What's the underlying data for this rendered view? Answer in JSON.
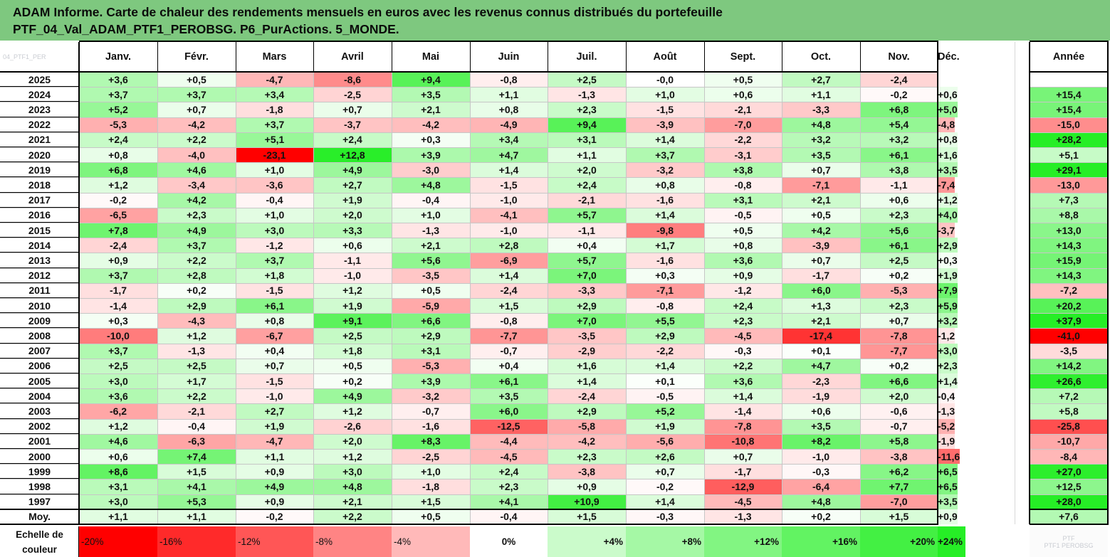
{
  "title": {
    "line1": "ADAM Informe. Carte de chaleur des rendements mensuels en euros avec les revenus connus distribués du portefeuille",
    "line2": "PTF_04_Val_ADAM_PTF1_PEROBSG. P6_PurActions. 5_MONDE."
  },
  "corner_watermark": "04_PTF1_PER",
  "annual_header": "Année",
  "legend_title_line1": "Echelle de",
  "legend_title_line2": "couleur",
  "legend_watermark_line1": "PTF",
  "legend_watermark_line2": "PTF1 PEROBSG",
  "colors": {
    "title_bg": "#7ec87f",
    "negative_max": "#ff0000",
    "positive_max": "#22ee22",
    "neutral": "#ffffff"
  },
  "chart_data": {
    "type": "heatmap",
    "title": "Carte de chaleur des rendements mensuels en euros",
    "months": [
      "Janv.",
      "Févr.",
      "Mars",
      "Avril",
      "Mai",
      "Juin",
      "Juil.",
      "Août",
      "Sept.",
      "Oct.",
      "Nov.",
      "Déc."
    ],
    "unit": "%",
    "rows": [
      {
        "year": "2025",
        "values": [
          "+3,6",
          "+0,5",
          "-4,7",
          "-8,6",
          "+9,4",
          "-0,8",
          "+2,5",
          "-0,0",
          "+0,5",
          "+2,7",
          "-2,4",
          ""
        ],
        "annual": ""
      },
      {
        "year": "2024",
        "values": [
          "+3,7",
          "+3,7",
          "+3,4",
          "-2,5",
          "+3,5",
          "+1,1",
          "-1,3",
          "+1,0",
          "+0,6",
          "+1,1",
          "-0,2",
          "+0,6"
        ],
        "annual": "+15,4"
      },
      {
        "year": "2023",
        "values": [
          "+5,2",
          "+0,7",
          "-1,8",
          "+0,7",
          "+2,1",
          "+0,8",
          "+2,3",
          "-1,5",
          "-2,1",
          "-3,3",
          "+6,8",
          "+5,0"
        ],
        "annual": "+15,4"
      },
      {
        "year": "2022",
        "values": [
          "-5,3",
          "-4,2",
          "+3,7",
          "-3,7",
          "-4,2",
          "-4,9",
          "+9,4",
          "-3,9",
          "-7,0",
          "+4,8",
          "+5,4",
          "-4,8"
        ],
        "annual": "-15,0"
      },
      {
        "year": "2021",
        "values": [
          "+2,4",
          "+2,2",
          "+5,1",
          "+2,4",
          "+0,3",
          "+3,4",
          "+3,1",
          "+1,4",
          "-2,2",
          "+3,2",
          "+3,2",
          "+0,8"
        ],
        "annual": "+28,2"
      },
      {
        "year": "2020",
        "values": [
          "+0,8",
          "-4,0",
          "-23,1",
          "+12,8",
          "+3,9",
          "+4,7",
          "+1,1",
          "+3,7",
          "-3,1",
          "+3,5",
          "+6,1",
          "+1,6"
        ],
        "annual": "+5,1"
      },
      {
        "year": "2019",
        "values": [
          "+6,8",
          "+4,6",
          "+1,0",
          "+4,9",
          "-3,0",
          "+1,4",
          "+2,0",
          "-3,2",
          "+3,8",
          "+0,7",
          "+3,8",
          "+3,5"
        ],
        "annual": "+29,1"
      },
      {
        "year": "2018",
        "values": [
          "+1,2",
          "-3,4",
          "-3,6",
          "+2,7",
          "+4,8",
          "-1,5",
          "+2,4",
          "+0,8",
          "-0,8",
          "-7,1",
          "-1,1",
          "-7,4"
        ],
        "annual": "-13,0"
      },
      {
        "year": "2017",
        "values": [
          "-0,2",
          "+4,2",
          "-0,4",
          "+1,9",
          "-0,4",
          "-1,0",
          "-2,1",
          "-1,6",
          "+3,1",
          "+2,1",
          "+0,6",
          "+1,2"
        ],
        "annual": "+7,3"
      },
      {
        "year": "2016",
        "values": [
          "-6,5",
          "+2,3",
          "+1,0",
          "+2,0",
          "+1,0",
          "-4,1",
          "+5,7",
          "+1,4",
          "-0,5",
          "+0,5",
          "+2,3",
          "+4,0"
        ],
        "annual": "+8,8"
      },
      {
        "year": "2015",
        "values": [
          "+7,8",
          "+4,9",
          "+3,0",
          "+3,3",
          "-1,3",
          "-1,0",
          "-1,1",
          "-9,8",
          "+0,5",
          "+4,2",
          "+5,6",
          "-3,7"
        ],
        "annual": "+13,0"
      },
      {
        "year": "2014",
        "values": [
          "-2,4",
          "+3,7",
          "-1,2",
          "+0,6",
          "+2,1",
          "+2,8",
          "+0,4",
          "+1,7",
          "+0,8",
          "-3,9",
          "+6,1",
          "+2,9"
        ],
        "annual": "+14,3"
      },
      {
        "year": "2013",
        "values": [
          "+0,9",
          "+2,2",
          "+3,7",
          "-1,1",
          "+5,6",
          "-6,9",
          "+5,7",
          "-1,6",
          "+3,6",
          "+0,7",
          "+2,5",
          "+0,3"
        ],
        "annual": "+15,9"
      },
      {
        "year": "2012",
        "values": [
          "+3,7",
          "+2,8",
          "+1,8",
          "-1,0",
          "-3,5",
          "+1,4",
          "+7,0",
          "+0,3",
          "+0,9",
          "-1,7",
          "+0,2",
          "+1,9"
        ],
        "annual": "+14,3"
      },
      {
        "year": "2011",
        "values": [
          "-1,7",
          "+0,2",
          "-1,5",
          "+1,2",
          "+0,5",
          "-2,4",
          "-3,3",
          "-7,1",
          "-1,2",
          "+6,0",
          "-5,3",
          "+7,9"
        ],
        "annual": "-7,2"
      },
      {
        "year": "2010",
        "values": [
          "-1,4",
          "+2,9",
          "+6,1",
          "+1,9",
          "-5,9",
          "+1,5",
          "+2,9",
          "-0,8",
          "+2,4",
          "+1,3",
          "+2,3",
          "+5,9"
        ],
        "annual": "+20,2"
      },
      {
        "year": "2009",
        "values": [
          "+0,3",
          "-4,3",
          "+0,8",
          "+9,1",
          "+6,6",
          "-0,8",
          "+7,0",
          "+5,5",
          "+2,3",
          "+2,1",
          "+0,7",
          "+3,2"
        ],
        "annual": "+37,9"
      },
      {
        "year": "2008",
        "values": [
          "-10,0",
          "+1,2",
          "-6,7",
          "+2,5",
          "+2,9",
          "-7,7",
          "-3,5",
          "+2,9",
          "-4,5",
          "-17,4",
          "-7,8",
          "-1,2"
        ],
        "annual": "-41,0"
      },
      {
        "year": "2007",
        "values": [
          "+3,7",
          "-1,3",
          "+0,4",
          "+1,8",
          "+3,1",
          "-0,7",
          "-2,9",
          "-2,2",
          "-0,3",
          "+0,1",
          "-7,7",
          "+3,0"
        ],
        "annual": "-3,5"
      },
      {
        "year": "2006",
        "values": [
          "+2,5",
          "+2,5",
          "+0,7",
          "+0,5",
          "-5,3",
          "+0,4",
          "+1,6",
          "+1,4",
          "+2,2",
          "+4,7",
          "+0,2",
          "+2,3"
        ],
        "annual": "+14,2"
      },
      {
        "year": "2005",
        "values": [
          "+3,0",
          "+1,7",
          "-1,5",
          "+0,2",
          "+3,9",
          "+6,1",
          "+1,4",
          "+0,1",
          "+3,6",
          "-2,3",
          "+6,6",
          "+1,4"
        ],
        "annual": "+26,6"
      },
      {
        "year": "2004",
        "values": [
          "+3,6",
          "+2,2",
          "-1,0",
          "+4,9",
          "-3,2",
          "+3,5",
          "-2,4",
          "-0,5",
          "+1,4",
          "-1,9",
          "+2,0",
          "-0,4"
        ],
        "annual": "+7,2"
      },
      {
        "year": "2003",
        "values": [
          "-6,2",
          "-2,1",
          "+2,7",
          "+1,2",
          "-0,7",
          "+6,0",
          "+2,9",
          "+5,2",
          "-1,4",
          "+0,6",
          "-0,6",
          "-1,3"
        ],
        "annual": "+5,8"
      },
      {
        "year": "2002",
        "values": [
          "+1,2",
          "-0,4",
          "+1,9",
          "-2,6",
          "-1,6",
          "-12,5",
          "-5,8",
          "+1,9",
          "-7,8",
          "+3,5",
          "-0,7",
          "-5,2"
        ],
        "annual": "-25,8"
      },
      {
        "year": "2001",
        "values": [
          "+4,6",
          "-6,3",
          "-4,7",
          "+2,0",
          "+8,3",
          "-4,4",
          "-4,2",
          "-5,6",
          "-10,8",
          "+8,2",
          "+5,8",
          "-1,9"
        ],
        "annual": "-10,7"
      },
      {
        "year": "2000",
        "values": [
          "+0,6",
          "+7,4",
          "+1,1",
          "+1,2",
          "-2,5",
          "-4,5",
          "+2,3",
          "+2,6",
          "+0,7",
          "-1,0",
          "-3,8",
          "-11,6"
        ],
        "annual": "-8,4"
      },
      {
        "year": "1999",
        "values": [
          "+8,6",
          "+1,5",
          "+0,9",
          "+3,0",
          "+1,0",
          "+2,4",
          "-3,8",
          "+0,7",
          "-1,7",
          "-0,3",
          "+6,2",
          "+6,5"
        ],
        "annual": "+27,0"
      },
      {
        "year": "1998",
        "values": [
          "+3,1",
          "+4,1",
          "+4,9",
          "+4,8",
          "-1,8",
          "+2,3",
          "+0,9",
          "-0,2",
          "-12,9",
          "-6,4",
          "+7,7",
          "+6,5"
        ],
        "annual": "+12,5"
      },
      {
        "year": "1997",
        "values": [
          "+3,0",
          "+5,3",
          "+0,9",
          "+2,1",
          "+1,5",
          "+4,1",
          "+10,9",
          "+1,4",
          "-4,5",
          "+4,8",
          "-7,0",
          "+3,5"
        ],
        "annual": "+28,0"
      },
      {
        "year": "Moy.",
        "values": [
          "+1,1",
          "+1,1",
          "-0,2",
          "+2,2",
          "+0,5",
          "-0,4",
          "+1,5",
          "-0,3",
          "-1,3",
          "+0,2",
          "+1,5",
          "+0,9"
        ],
        "annual": "+7,6"
      }
    ],
    "color_scale": [
      "-20%",
      "-16%",
      "-12%",
      "-8%",
      "-4%",
      "0%",
      "+4%",
      "+8%",
      "+12%",
      "+16%",
      "+20%",
      "+24%"
    ]
  }
}
